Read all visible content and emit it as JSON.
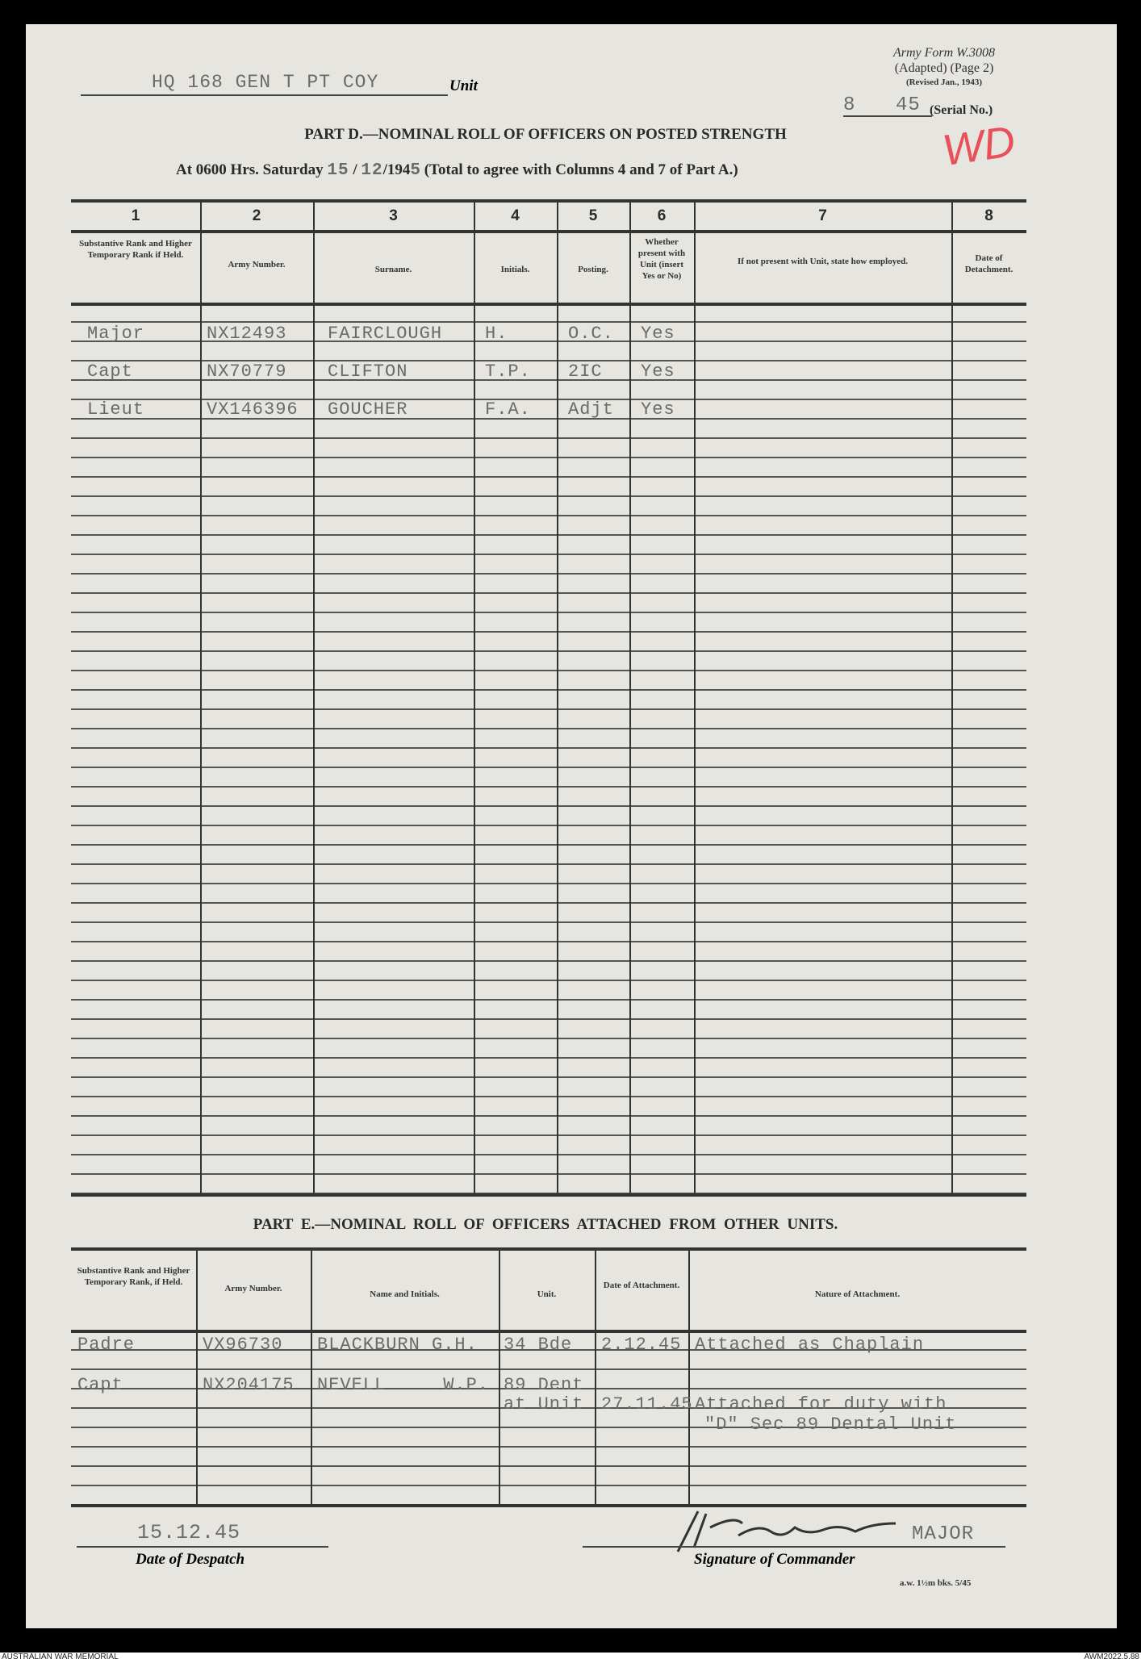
{
  "unit": {
    "value": "HQ 168 GEN T PT COY",
    "label": "Unit"
  },
  "form": {
    "line1": "Army Form W.3008",
    "line2": "(Adapted) (Page 2)",
    "line3": "(Revised Jan., 1943)",
    "serial_a": "8",
    "serial_b": "45",
    "serial_label": "(Serial No.)",
    "annotation": "WD"
  },
  "part_d": {
    "title": "PART D.—NOMINAL ROLL OF OFFICERS ON POSTED STRENGTH",
    "subtitle_prefix": "At 0600 Hrs. Saturday",
    "day": "15",
    "month": "12",
    "year_prefix": "/194",
    "year_digit": "5",
    "subtitle_suffix": "(Total to agree with Columns 4 and 7 of Part A.)",
    "col_numbers": [
      "1",
      "2",
      "3",
      "4",
      "5",
      "6",
      "7",
      "8"
    ],
    "headers": [
      "Substantive Rank and Higher Temporary Rank if Held.",
      "Army Number.",
      "Surname.",
      "Initials.",
      "Posting.",
      "Whether present with Unit (insert Yes or No)",
      "If not present with Unit, state how employed.",
      "Date of Detachment."
    ],
    "rows": [
      [
        "Major",
        "NX12493",
        "FAIRCLOUGH",
        "H.",
        "O.C.",
        "Yes"
      ],
      [
        "Capt",
        "NX70779",
        "CLIFTON",
        "T.P.",
        "2IC",
        "Yes"
      ],
      [
        "Lieut",
        "VX146396",
        "GOUCHER",
        "F.A.",
        "Adjt",
        "Yes"
      ]
    ]
  },
  "part_e": {
    "title": "PART E.—NOMINAL ROLL OF OFFICERS ATTACHED FROM OTHER UNITS.",
    "headers": [
      "Substantive Rank and Higher Temporary Rank, if Held.",
      "Army Number.",
      "Name and Initials.",
      "Unit.",
      "Date of Attachment.",
      "Nature of Attachment."
    ],
    "rows": [
      {
        "rank": "Padre",
        "number": "VX96730",
        "name": "BLACKBURN G.H.",
        "unit": "34 Bde",
        "date": "2.12.45",
        "nature": "Attached as Chaplain"
      },
      {
        "rank": "Capt",
        "number": "NX204175",
        "name": "NEVELL     W.P.",
        "unit": "89 Dent",
        "unit2": "at Unit",
        "date": "27.11.45",
        "nature": "Attached for duty with",
        "nature2": "\"D\" Sec 89 Dental Unit"
      }
    ]
  },
  "footer": {
    "despatch_date": "15.12.45",
    "despatch_label": "Date of Despatch",
    "signature_rank": "MAJOR",
    "signature_label": "Signature of Commander",
    "print_code": "a.w. 1½m bks. 5/45"
  },
  "caption": {
    "left": "AUSTRALIAN WAR MEMORIAL",
    "right": "AWM2022.5.88"
  }
}
